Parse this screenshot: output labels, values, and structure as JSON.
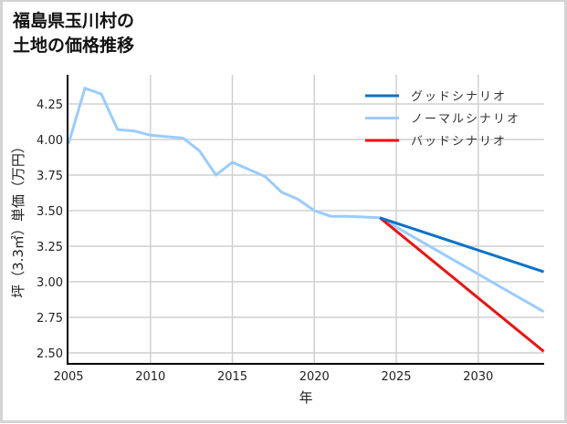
{
  "title": {
    "line1": "福島県玉川村の",
    "line2": "土地の価格推移"
  },
  "chart_data": {
    "type": "line",
    "title": "福島県玉川村の土地の価格推移",
    "xlabel": "年",
    "ylabel": "坪（3.3㎡）単価（万円）",
    "xlim": [
      2005,
      2034
    ],
    "ylim": [
      2.42,
      4.44
    ],
    "x_ticks": [
      2005,
      2010,
      2015,
      2020,
      2025,
      2030
    ],
    "x_tick_labels": [
      "2005",
      "2010",
      "2015",
      "2020",
      "2025",
      "2030"
    ],
    "y_ticks": [
      2.5,
      2.75,
      3.0,
      3.25,
      3.5,
      3.75,
      4.0,
      4.25
    ],
    "y_tick_labels": [
      "2.50",
      "2.75",
      "3.00",
      "3.25",
      "3.50",
      "3.75",
      "4.00",
      "4.25"
    ],
    "grid": true,
    "legend_position": "upper right",
    "series": [
      {
        "name": "グッドシナリオ",
        "color": "#0a72c8",
        "x": [
          2024,
          2034
        ],
        "values": [
          3.45,
          3.07
        ]
      },
      {
        "name": "ノーマルシナリオ",
        "color": "#99ccff",
        "x": [
          2005,
          2006,
          2007,
          2008,
          2009,
          2010,
          2011,
          2012,
          2013,
          2014,
          2015,
          2016,
          2017,
          2018,
          2019,
          2020,
          2021,
          2022,
          2023,
          2024,
          2034
        ],
        "values": [
          3.97,
          4.36,
          4.32,
          4.07,
          4.06,
          4.03,
          4.02,
          4.01,
          3.92,
          3.75,
          3.84,
          3.79,
          3.74,
          3.63,
          3.58,
          3.5,
          3.46,
          3.46,
          3.455,
          3.45,
          2.79
        ]
      },
      {
        "name": "バッドシナリオ",
        "color": "#ee1111",
        "x": [
          2024,
          2034
        ],
        "values": [
          3.45,
          2.51
        ]
      }
    ]
  },
  "colors": {
    "grid": "#d0d0d0",
    "axis": "#000000",
    "frame": "#d4d4d4"
  }
}
